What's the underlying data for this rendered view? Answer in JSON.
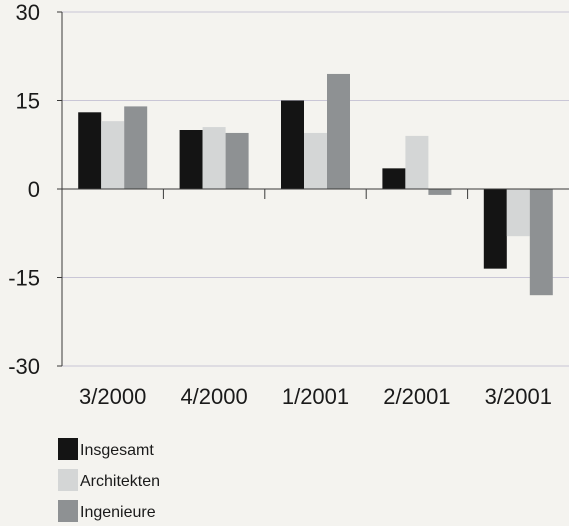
{
  "chart_data": {
    "type": "bar",
    "title": "",
    "xlabel": "",
    "ylabel": "",
    "ylim": [
      -30,
      30
    ],
    "yticks": [
      30,
      15,
      0,
      -15,
      -30
    ],
    "ytick_labels": [
      "30",
      "15",
      "0",
      "-15",
      "-30"
    ],
    "categories": [
      "3/2000",
      "4/2000",
      "1/2001",
      "2/2001",
      "3/2001"
    ],
    "series": [
      {
        "name": "Insgesamt",
        "values": [
          13,
          10,
          15,
          3.5,
          -13.5
        ]
      },
      {
        "name": "Architekten",
        "values": [
          11.5,
          10.5,
          9.5,
          9,
          -8
        ]
      },
      {
        "name": "Ingenieure",
        "values": [
          14,
          9.5,
          19.5,
          -1,
          -18
        ]
      }
    ],
    "grid": true,
    "legend_position": "bottom-left"
  },
  "colors": {
    "background": "#f4f3ef",
    "grid": "#c9c6d6",
    "axis": "#3a3a3a",
    "series": [
      "#141414",
      "#d4d6d6",
      "#8e9193"
    ]
  }
}
